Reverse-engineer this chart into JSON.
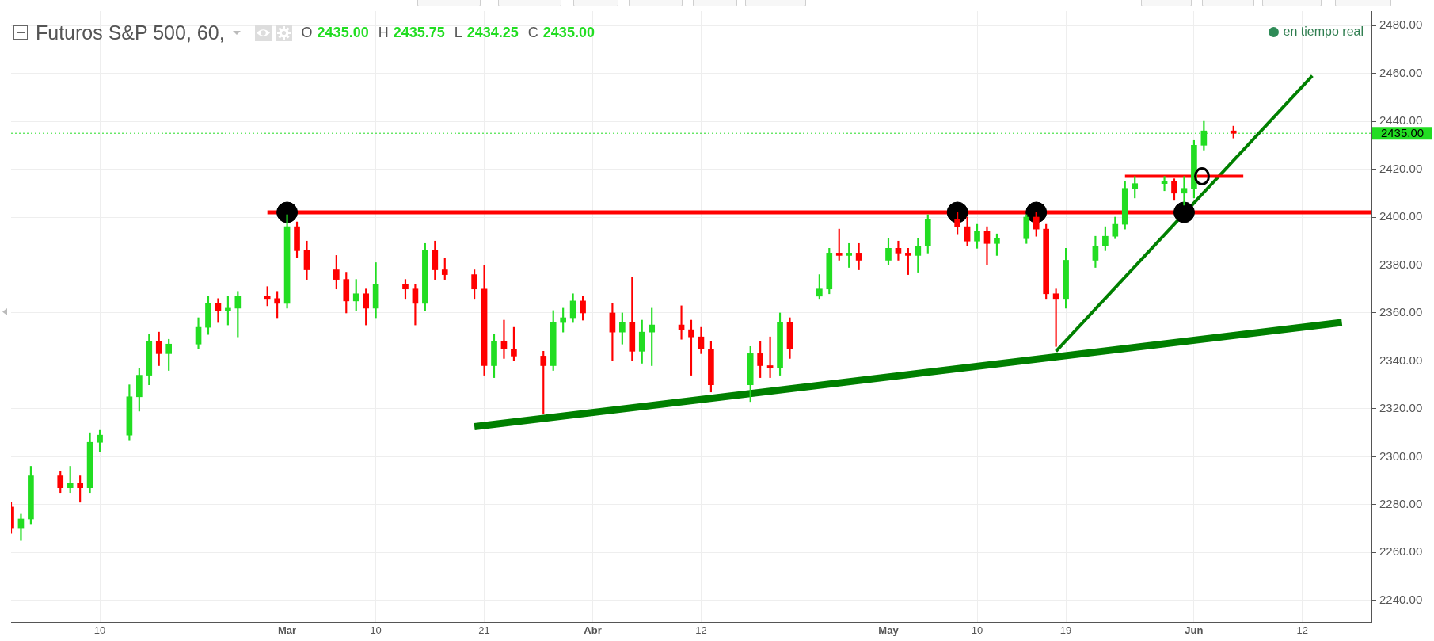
{
  "chart_data": {
    "type": "candlestick",
    "title": "Futuros S&P 500, 60,",
    "subtitle": "O 2435.00 H 2435.75 L 2434.25 C 2435.00",
    "annotations": [
      "en tiempo real"
    ],
    "xlim": [
      "--02-01",
      "--06-19"
    ],
    "xticks": [
      {
        "value": "--02-10",
        "label": "10"
      },
      {
        "value": "--03-01",
        "label": "Mar"
      },
      {
        "value": "--03-10",
        "label": "10"
      },
      {
        "value": "--03-21",
        "label": "21"
      },
      {
        "value": "--04-01",
        "label": "Abr"
      },
      {
        "value": "--04-12",
        "label": "12"
      },
      {
        "value": "--05-01",
        "label": "May"
      },
      {
        "value": "--05-10",
        "label": "10"
      },
      {
        "value": "--05-19",
        "label": "19"
      },
      {
        "value": "--06-01",
        "label": "Jun"
      },
      {
        "value": "--06-12",
        "label": "12"
      }
    ],
    "ylim": [
      2231,
      2486
    ],
    "yticks": [
      {
        "value": 2240,
        "label": "2240.00"
      },
      {
        "value": 2260,
        "label": "2260.00"
      },
      {
        "value": 2280,
        "label": "2280.00"
      },
      {
        "value": 2300,
        "label": "2300.00"
      },
      {
        "value": 2320,
        "label": "2320.00"
      },
      {
        "value": 2340,
        "label": "2340.00"
      },
      {
        "value": 2360,
        "label": "2360.00"
      },
      {
        "value": 2380,
        "label": "2380.00"
      },
      {
        "value": 2400,
        "label": "2400.00"
      },
      {
        "value": 2420,
        "label": "2420.00"
      },
      {
        "value": 2440,
        "label": "2440.00"
      },
      {
        "value": 2460,
        "label": "2460.00"
      },
      {
        "value": 2480,
        "label": "2480.00"
      }
    ],
    "grid": true,
    "ref_lines": [
      {
        "axis": "y",
        "value": 2435,
        "label": "2435.00",
        "color": "#22dd22",
        "line_style": "dotted"
      }
    ],
    "series": [
      {
        "x": [
          "--02-01",
          "--02-02",
          "--02-03",
          "--02-06",
          "--02-07",
          "--02-08",
          "--02-09",
          "--02-10",
          "--02-13",
          "--02-14",
          "--02-15",
          "--02-16",
          "--02-17",
          "--02-20",
          "--02-21",
          "--02-22",
          "--02-23",
          "--02-24",
          "--02-27",
          "--02-28",
          "--03-01",
          "--03-02",
          "--03-03",
          "--03-06",
          "--03-07",
          "--03-08",
          "--03-09",
          "--03-10",
          "--03-13",
          "--03-14",
          "--03-15",
          "--03-16",
          "--03-17",
          "--03-20",
          "--03-21",
          "--03-22",
          "--03-23",
          "--03-24",
          "--03-27",
          "--03-28",
          "--03-29",
          "--03-30",
          "--03-31",
          "--04-03",
          "--04-04",
          "--04-05",
          "--04-06",
          "--04-07",
          "--04-10",
          "--04-11",
          "--04-12",
          "--04-13",
          "--04-17",
          "--04-18",
          "--04-19",
          "--04-20",
          "--04-21",
          "--04-24",
          "--04-25",
          "--04-26",
          "--04-27",
          "--04-28",
          "--05-01",
          "--05-02",
          "--05-03",
          "--05-04",
          "--05-05",
          "--05-08",
          "--05-09",
          "--05-10",
          "--05-11",
          "--05-12",
          "--05-15",
          "--05-16",
          "--05-17",
          "--05-18",
          "--05-19",
          "--05-22",
          "--05-23",
          "--05-24",
          "--05-25",
          "--05-26",
          "--05-29",
          "--05-30",
          "--05-31",
          "--06-01",
          "--06-02",
          "--06-05"
        ],
        "ohlc": [
          [
            2279,
            2281,
            2268,
            2270
          ],
          [
            2270,
            2276,
            2265,
            2274
          ],
          [
            2274,
            2296,
            2272,
            2292
          ],
          [
            2292,
            2294,
            2285,
            2287
          ],
          [
            2287,
            2296,
            2285,
            2289
          ],
          [
            2289,
            2292,
            2281,
            2287
          ],
          [
            2287,
            2310,
            2285,
            2306
          ],
          [
            2306,
            2311,
            2302,
            2309
          ],
          [
            2309,
            2330,
            2307,
            2325
          ],
          [
            2325,
            2337,
            2319,
            2334
          ],
          [
            2334,
            2351,
            2330,
            2348
          ],
          [
            2348,
            2352,
            2338,
            2343
          ],
          [
            2343,
            2349,
            2336,
            2347
          ],
          [
            2347,
            2358,
            2345,
            2354
          ],
          [
            2354,
            2367,
            2351,
            2364
          ],
          [
            2364,
            2366,
            2356,
            2361
          ],
          [
            2361,
            2367,
            2355,
            2362
          ],
          [
            2362,
            2369,
            2350,
            2367
          ],
          [
            2367,
            2371,
            2363,
            2366
          ],
          [
            2366,
            2369,
            2358,
            2364
          ],
          [
            2364,
            2401,
            2362,
            2396
          ],
          [
            2396,
            2398,
            2383,
            2386
          ],
          [
            2386,
            2390,
            2374,
            2378
          ],
          [
            2378,
            2384,
            2370,
            2374
          ],
          [
            2374,
            2377,
            2360,
            2365
          ],
          [
            2365,
            2374,
            2361,
            2368
          ],
          [
            2368,
            2370,
            2355,
            2362
          ],
          [
            2362,
            2381,
            2358,
            2372
          ],
          [
            2372,
            2374,
            2366,
            2370
          ],
          [
            2370,
            2372,
            2355,
            2364
          ],
          [
            2364,
            2389,
            2361,
            2386
          ],
          [
            2386,
            2390,
            2374,
            2378
          ],
          [
            2378,
            2383,
            2374,
            2376
          ],
          [
            2376,
            2378,
            2366,
            2370
          ],
          [
            2370,
            2380,
            2334,
            2338
          ],
          [
            2338,
            2351,
            2333,
            2348
          ],
          [
            2348,
            2357,
            2341,
            2345
          ],
          [
            2345,
            2354,
            2340,
            2342
          ],
          [
            2342,
            2344,
            2318,
            2338
          ],
          [
            2338,
            2361,
            2336,
            2356
          ],
          [
            2356,
            2362,
            2352,
            2358
          ],
          [
            2358,
            2368,
            2356,
            2365
          ],
          [
            2365,
            2367,
            2357,
            2360
          ],
          [
            2360,
            2364,
            2340,
            2352
          ],
          [
            2352,
            2360,
            2347,
            2356
          ],
          [
            2356,
            2375,
            2340,
            2344
          ],
          [
            2344,
            2357,
            2339,
            2352
          ],
          [
            2352,
            2362,
            2338,
            2355
          ],
          [
            2355,
            2363,
            2349,
            2353
          ],
          [
            2353,
            2357,
            2334,
            2350
          ],
          [
            2350,
            2354,
            2343,
            2345
          ],
          [
            2345,
            2348,
            2327,
            2330
          ],
          [
            2330,
            2346,
            2323,
            2343
          ],
          [
            2343,
            2348,
            2333,
            2338
          ],
          [
            2338,
            2350,
            2333,
            2337
          ],
          [
            2337,
            2360,
            2334,
            2356
          ],
          [
            2356,
            2358,
            2341,
            2345
          ],
          [
            2367,
            2376,
            2366,
            2370
          ],
          [
            2370,
            2387,
            2368,
            2385
          ],
          [
            2385,
            2395,
            2382,
            2384
          ],
          [
            2384,
            2389,
            2379,
            2385
          ],
          [
            2385,
            2389,
            2378,
            2382
          ],
          [
            2382,
            2391,
            2380,
            2387
          ],
          [
            2387,
            2390,
            2382,
            2385
          ],
          [
            2385,
            2387,
            2376,
            2384
          ],
          [
            2384,
            2391,
            2377,
            2388
          ],
          [
            2388,
            2401,
            2385,
            2399
          ],
          [
            2399,
            2402,
            2393,
            2396
          ],
          [
            2396,
            2400,
            2388,
            2390
          ],
          [
            2390,
            2397,
            2387,
            2394
          ],
          [
            2394,
            2396,
            2380,
            2389
          ],
          [
            2389,
            2393,
            2384,
            2391
          ],
          [
            2391,
            2401,
            2389,
            2400
          ],
          [
            2400,
            2402,
            2392,
            2395
          ],
          [
            2395,
            2397,
            2366,
            2368
          ],
          [
            2368,
            2370,
            2346,
            2366
          ],
          [
            2366,
            2387,
            2362,
            2382
          ],
          [
            2382,
            2392,
            2379,
            2388
          ],
          [
            2388,
            2396,
            2386,
            2392
          ],
          [
            2392,
            2400,
            2391,
            2397
          ],
          [
            2397,
            2415,
            2395,
            2412
          ],
          [
            2412,
            2417,
            2408,
            2414
          ],
          [
            2414,
            2417,
            2411,
            2415
          ],
          [
            2415,
            2416,
            2407,
            2410
          ],
          [
            2410,
            2417,
            2405,
            2412
          ],
          [
            2412,
            2432,
            2408,
            2430
          ],
          [
            2430,
            2440,
            2428,
            2436
          ],
          [
            2436,
            2438,
            2433,
            2435
          ]
        ],
        "colors": [
          "#ff0000",
          "#22dd22",
          "#22dd22",
          "#ff0000",
          "#22dd22",
          "#ff0000",
          "#22dd22",
          "#22dd22",
          "#22dd22",
          "#22dd22",
          "#22dd22",
          "#ff0000",
          "#22dd22",
          "#22dd22",
          "#22dd22",
          "#ff0000",
          "#22dd22",
          "#22dd22",
          "#ff0000",
          "#ff0000",
          "#22dd22",
          "#ff0000",
          "#ff0000",
          "#ff0000",
          "#ff0000",
          "#22dd22",
          "#ff0000",
          "#22dd22",
          "#ff0000",
          "#ff0000",
          "#22dd22",
          "#ff0000",
          "#ff0000",
          "#ff0000",
          "#ff0000",
          "#22dd22",
          "#ff0000",
          "#ff0000",
          "#ff0000",
          "#22dd22",
          "#22dd22",
          "#22dd22",
          "#ff0000",
          "#ff0000",
          "#22dd22",
          "#ff0000",
          "#22dd22",
          "#22dd22",
          "#ff0000",
          "#ff0000",
          "#ff0000",
          "#ff0000",
          "#22dd22",
          "#ff0000",
          "#ff0000",
          "#22dd22",
          "#ff0000",
          "#22dd22",
          "#22dd22",
          "#ff0000",
          "#22dd22",
          "#ff0000",
          "#22dd22",
          "#ff0000",
          "#ff0000",
          "#22dd22",
          "#22dd22",
          "#ff0000",
          "#ff0000",
          "#22dd22",
          "#ff0000",
          "#22dd22",
          "#22dd22",
          "#ff0000",
          "#ff0000",
          "#ff0000",
          "#22dd22",
          "#22dd22",
          "#22dd22",
          "#22dd22",
          "#22dd22",
          "#22dd22",
          "#22dd22",
          "#ff0000",
          "#22dd22",
          "#22dd22",
          "#22dd22",
          "#ff0000"
        ]
      },
      {
        "type": "line",
        "x": [
          "--02-27",
          "--06-19"
        ],
        "values": [
          2402,
          2402
        ],
        "color": "#ff0000"
      },
      {
        "type": "line",
        "x": [
          "--05-25",
          "--06-06"
        ],
        "values": [
          2417,
          2417
        ],
        "color": "#ff0000"
      },
      {
        "type": "line",
        "x": [
          "--03-20",
          "--06-16"
        ],
        "values": [
          2312.5,
          2356
        ],
        "color": "#008000"
      },
      {
        "type": "line",
        "x": [
          "--05-18",
          "--06-13"
        ],
        "values": [
          2344,
          2459
        ],
        "color": "#008000"
      },
      {
        "type": "scatter",
        "x": [
          "--03-01",
          "--05-08",
          "--05-16",
          "--05-31"
        ],
        "values": [
          2402,
          2402,
          2402,
          2402
        ],
        "color": "#000000",
        "marker": "circle"
      }
    ]
  }
}
